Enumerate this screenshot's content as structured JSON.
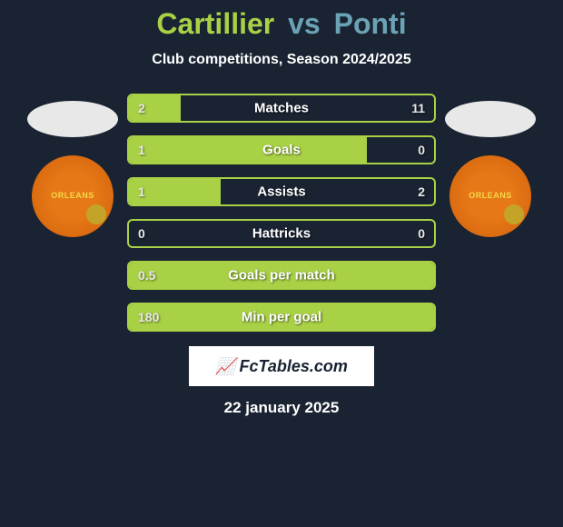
{
  "title": {
    "player1": "Cartillier",
    "vs": "vs",
    "player2": "Ponti"
  },
  "subtitle": "Club competitions, Season 2024/2025",
  "club_badge_text": "ORLEANS",
  "stats": [
    {
      "label": "Matches",
      "left_val": "2",
      "right_val": "11",
      "left_fill_pct": 17,
      "right_fill_pct": 0,
      "border": "#a9d146",
      "fill": "#a9d146"
    },
    {
      "label": "Goals",
      "left_val": "1",
      "right_val": "0",
      "left_fill_pct": 78,
      "right_fill_pct": 0,
      "border": "#a9d146",
      "fill": "#a9d146"
    },
    {
      "label": "Assists",
      "left_val": "1",
      "right_val": "2",
      "left_fill_pct": 30,
      "right_fill_pct": 0,
      "border": "#a9d146",
      "fill": "#a9d146"
    },
    {
      "label": "Hattricks",
      "left_val": "0",
      "right_val": "0",
      "left_fill_pct": 0,
      "right_fill_pct": 0,
      "border": "#a9d146",
      "fill": "#a9d146"
    },
    {
      "label": "Goals per match",
      "left_val": "0.5",
      "right_val": "",
      "left_fill_pct": 100,
      "right_fill_pct": 0,
      "border": "#a9d146",
      "fill": "#a9d146"
    },
    {
      "label": "Min per goal",
      "left_val": "180",
      "right_val": "",
      "left_fill_pct": 100,
      "right_fill_pct": 0,
      "border": "#a9d146",
      "fill": "#a9d146"
    }
  ],
  "brand": "FcTables.com",
  "date": "22 january 2025",
  "colors": {
    "bg": "#1a2332",
    "p1": "#a9d146",
    "p2": "#6ba3b5",
    "white": "#ffffff"
  }
}
